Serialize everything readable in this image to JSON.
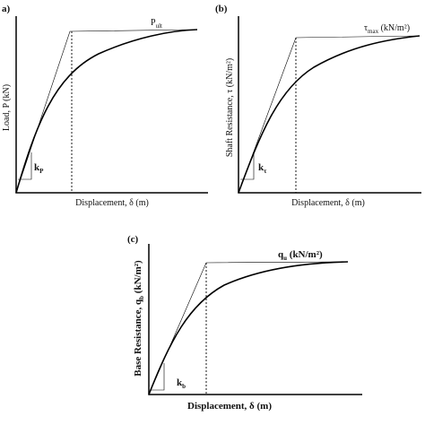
{
  "panel_a": {
    "label": "a)",
    "y_label": "Load, P (kN)",
    "x_label": "Displacement, δ (m)",
    "curve_label": {
      "base": "P",
      "sub": "ult"
    },
    "slope_label": {
      "base": "k",
      "sub": "P"
    }
  },
  "panel_b": {
    "label": "(b)",
    "y_label": "Shaft Resistance, τ (kN/m²)",
    "x_label": "Displacement, δ (m)",
    "curve_label": {
      "base": "τ",
      "sub": "max",
      "unit": " (kN/m²)"
    },
    "slope_label": {
      "base": "k",
      "sub": "τ"
    }
  },
  "panel_c": {
    "label": "(c)",
    "y_label": {
      "base": "Base Resistance, q",
      "sub": "b",
      "unit": " (kN/m²)"
    },
    "x_label": "Displacement, δ (m)",
    "curve_label": {
      "base": "q",
      "sub": "u",
      "unit": " (kN/m²)"
    },
    "slope_label": {
      "base": "k",
      "sub": "b"
    }
  }
}
